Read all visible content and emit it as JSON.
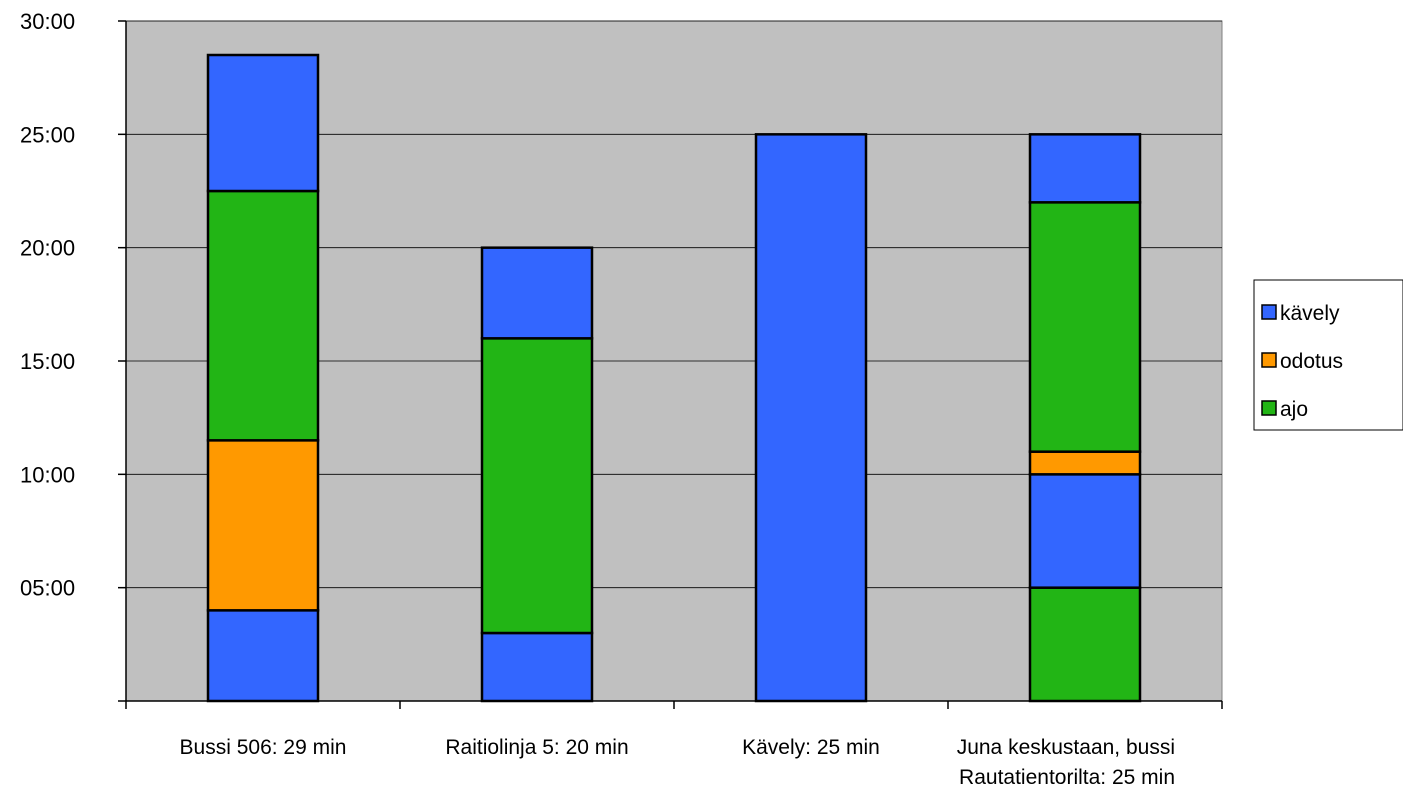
{
  "chart_data": {
    "type": "bar",
    "stacked": true,
    "title": "",
    "xlabel": "",
    "ylabel": "",
    "ylim": [
      0,
      30
    ],
    "y_unit": "minutes",
    "yticks": [
      "",
      "05:00",
      "10:00",
      "15:00",
      "20:00",
      "25:00",
      "30:00"
    ],
    "grid": true,
    "legend_position": "right",
    "legend": [
      {
        "name": "kävely",
        "color": "#3366ff"
      },
      {
        "name": "odotus",
        "color": "#ff9900"
      },
      {
        "name": "ajo",
        "color": "#22b515"
      }
    ],
    "categories": [
      [
        "Bussi 506: 29 min"
      ],
      [
        "Raitiolinja 5: 20 min"
      ],
      [
        "Kävely: 25 min"
      ],
      [
        "Juna keskustaan, bussi",
        "Rautatientorilta: 25 min"
      ]
    ],
    "stacks": [
      [
        {
          "series": "kävely",
          "value": 4
        },
        {
          "series": "odotus",
          "value": 7.5
        },
        {
          "series": "ajo",
          "value": 11
        },
        {
          "series": "kävely",
          "value": 6
        }
      ],
      [
        {
          "series": "kävely",
          "value": 3
        },
        {
          "series": "ajo",
          "value": 13
        },
        {
          "series": "kävely",
          "value": 4
        }
      ],
      [
        {
          "series": "kävely",
          "value": 25
        }
      ],
      [
        {
          "series": "ajo",
          "value": 5
        },
        {
          "series": "kävely",
          "value": 5
        },
        {
          "series": "odotus",
          "value": 1
        },
        {
          "series": "ajo",
          "value": 11
        },
        {
          "series": "kävely",
          "value": 3
        }
      ]
    ],
    "colors": {
      "plot_background": "#c0c0c0",
      "bar_border": "#000000"
    }
  }
}
